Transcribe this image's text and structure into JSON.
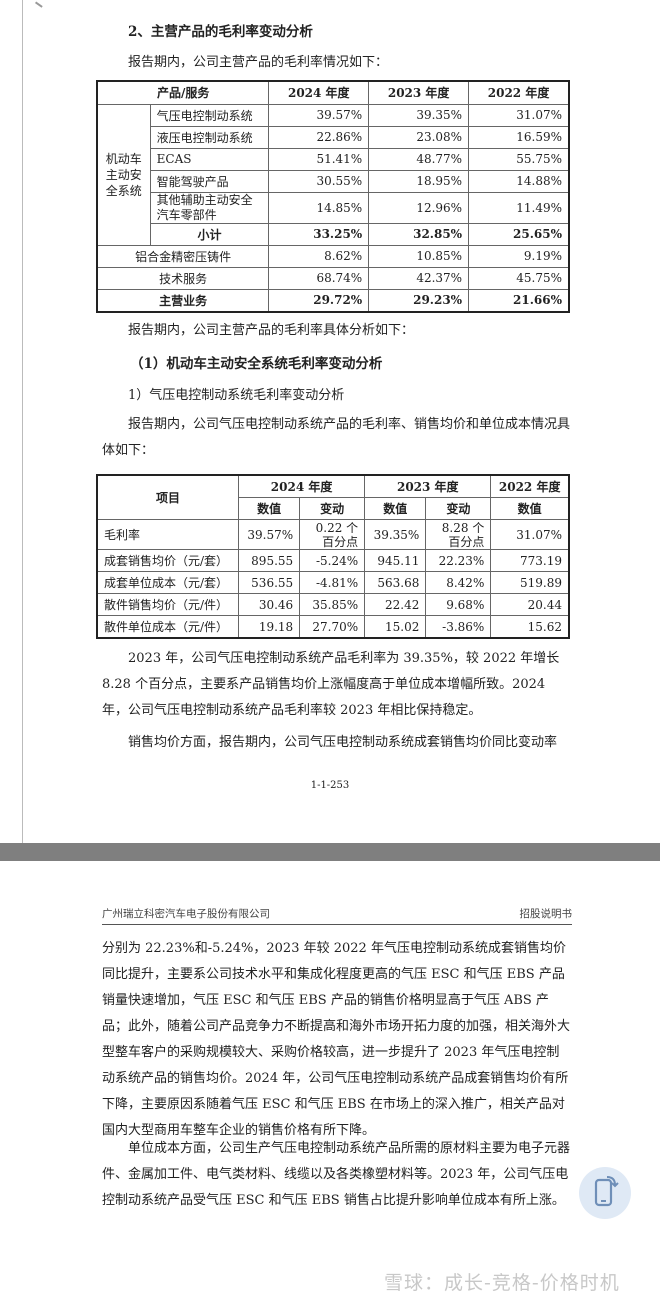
{
  "page1": {
    "section_title": "2、主营产品的毛利率变动分析",
    "intro": "报告期内，公司主营产品的毛利率情况如下：",
    "table1": {
      "headers": [
        "产品/服务",
        "2024 年度",
        "2023 年度",
        "2022 年度"
      ],
      "group_label": "机动车主动安全系统",
      "group_rows": [
        {
          "name": "气压电控制动系统",
          "v": [
            "39.57%",
            "39.35%",
            "31.07%"
          ]
        },
        {
          "name": "液压电控制动系统",
          "v": [
            "22.86%",
            "23.08%",
            "16.59%"
          ]
        },
        {
          "name": "ECAS",
          "v": [
            "51.41%",
            "48.77%",
            "55.75%"
          ]
        },
        {
          "name": "智能驾驶产品",
          "v": [
            "30.55%",
            "18.95%",
            "14.88%"
          ]
        },
        {
          "name": "其他辅助主动安全汽车零部件",
          "v": [
            "14.85%",
            "12.96%",
            "11.49%"
          ]
        },
        {
          "name": "小计",
          "v": [
            "33.25%",
            "32.85%",
            "25.65%"
          ]
        }
      ],
      "other_rows": [
        {
          "name": "铝合金精密压铸件",
          "v": [
            "8.62%",
            "10.85%",
            "9.19%"
          ]
        },
        {
          "name": "技术服务",
          "v": [
            "68.74%",
            "42.37%",
            "45.75%"
          ]
        },
        {
          "name": "主营业务",
          "v": [
            "29.72%",
            "29.23%",
            "21.66%"
          ]
        }
      ]
    },
    "analysis_intro": "报告期内，公司主营产品的毛利率具体分析如下：",
    "subsection_title": "（1）机动车主动安全系统毛利率变动分析",
    "sub_sub_title": "1）气压电控制动系统毛利率变动分析",
    "table2_intro": "报告期内，公司气压电控制动系统产品的毛利率、销售均价和单位成本情况具体如下：",
    "table2": {
      "item_header": "项目",
      "years": [
        "2024 年度",
        "2023 年度",
        "2022 年度"
      ],
      "sub_headers": [
        "数值",
        "变动",
        "数值",
        "变动",
        "数值"
      ],
      "rows": [
        {
          "name": "毛利率",
          "v": [
            "39.57%",
            "0.22 个百分点",
            "39.35%",
            "8.28 个百分点",
            "31.07%"
          ]
        },
        {
          "name": "成套销售均价（元/套）",
          "v": [
            "895.55",
            "-5.24%",
            "945.11",
            "22.23%",
            "773.19"
          ]
        },
        {
          "name": "成套单位成本（元/套）",
          "v": [
            "536.55",
            "-4.81%",
            "563.68",
            "8.42%",
            "519.89"
          ]
        },
        {
          "name": "散件销售均价（元/件）",
          "v": [
            "30.46",
            "35.85%",
            "22.42",
            "9.68%",
            "20.44"
          ]
        },
        {
          "name": "散件单位成本（元/件）",
          "v": [
            "19.18",
            "27.70%",
            "15.02",
            "-3.86%",
            "15.62"
          ]
        }
      ]
    },
    "para1": "2023 年，公司气压电控制动系统产品毛利率为 39.35%，较 2022 年增长 8.28 个百分点，主要系产品销售均价上涨幅度高于单位成本增幅所致。2024 年，公司气压电控制动系统产品毛利率较 2023 年相比保持稳定。",
    "para2": "销售均价方面，报告期内，公司气压电控制动系统成套销售均价同比变动率",
    "page_number": "1-1-253"
  },
  "page2": {
    "header_left": "广州瑞立科密汽车电子股份有限公司",
    "header_right": "招股说明书",
    "para1": "分别为 22.23%和-5.24%，2023 年较 2022 年气压电控制动系统成套销售均价同比提升，主要系公司技术水平和集成化程度更高的气压 ESC 和气压 EBS 产品销量快速增加，气压 ESC 和气压 EBS 产品的销售价格明显高于气压 ABS 产品；此外，随着公司产品竞争力不断提高和海外市场开拓力度的加强，相关海外大型整车客户的采购规模较大、采购价格较高，进一步提升了 2023 年气压电控制动系统产品的销售均价。2024 年，公司气压电控制动系统产品成套销售均价有所下降，主要原因系随着气压 ESC 和气压 EBS 在市场上的深入推广，相关产品对国内大型商用车整车企业的销售价格有所下降。",
    "para2": "单位成本方面，公司生产气压电控制动系统产品所需的原材料主要为电子元器件、金属加工件、电气类材料、线缆以及各类橡塑材料等。2023 年，公司气压电控制动系统产品受气压 ESC 和气压 EBS 销售占比提升影响单位成本有所上涨。"
  },
  "watermark": "雪球：成长-竞格-价格时机",
  "floating_button_icon": "phone-rotate-icon",
  "colors": {
    "band": "#7f7f7f",
    "fab": "#dfe9f5",
    "fab_icon": "#6f8fb8"
  }
}
